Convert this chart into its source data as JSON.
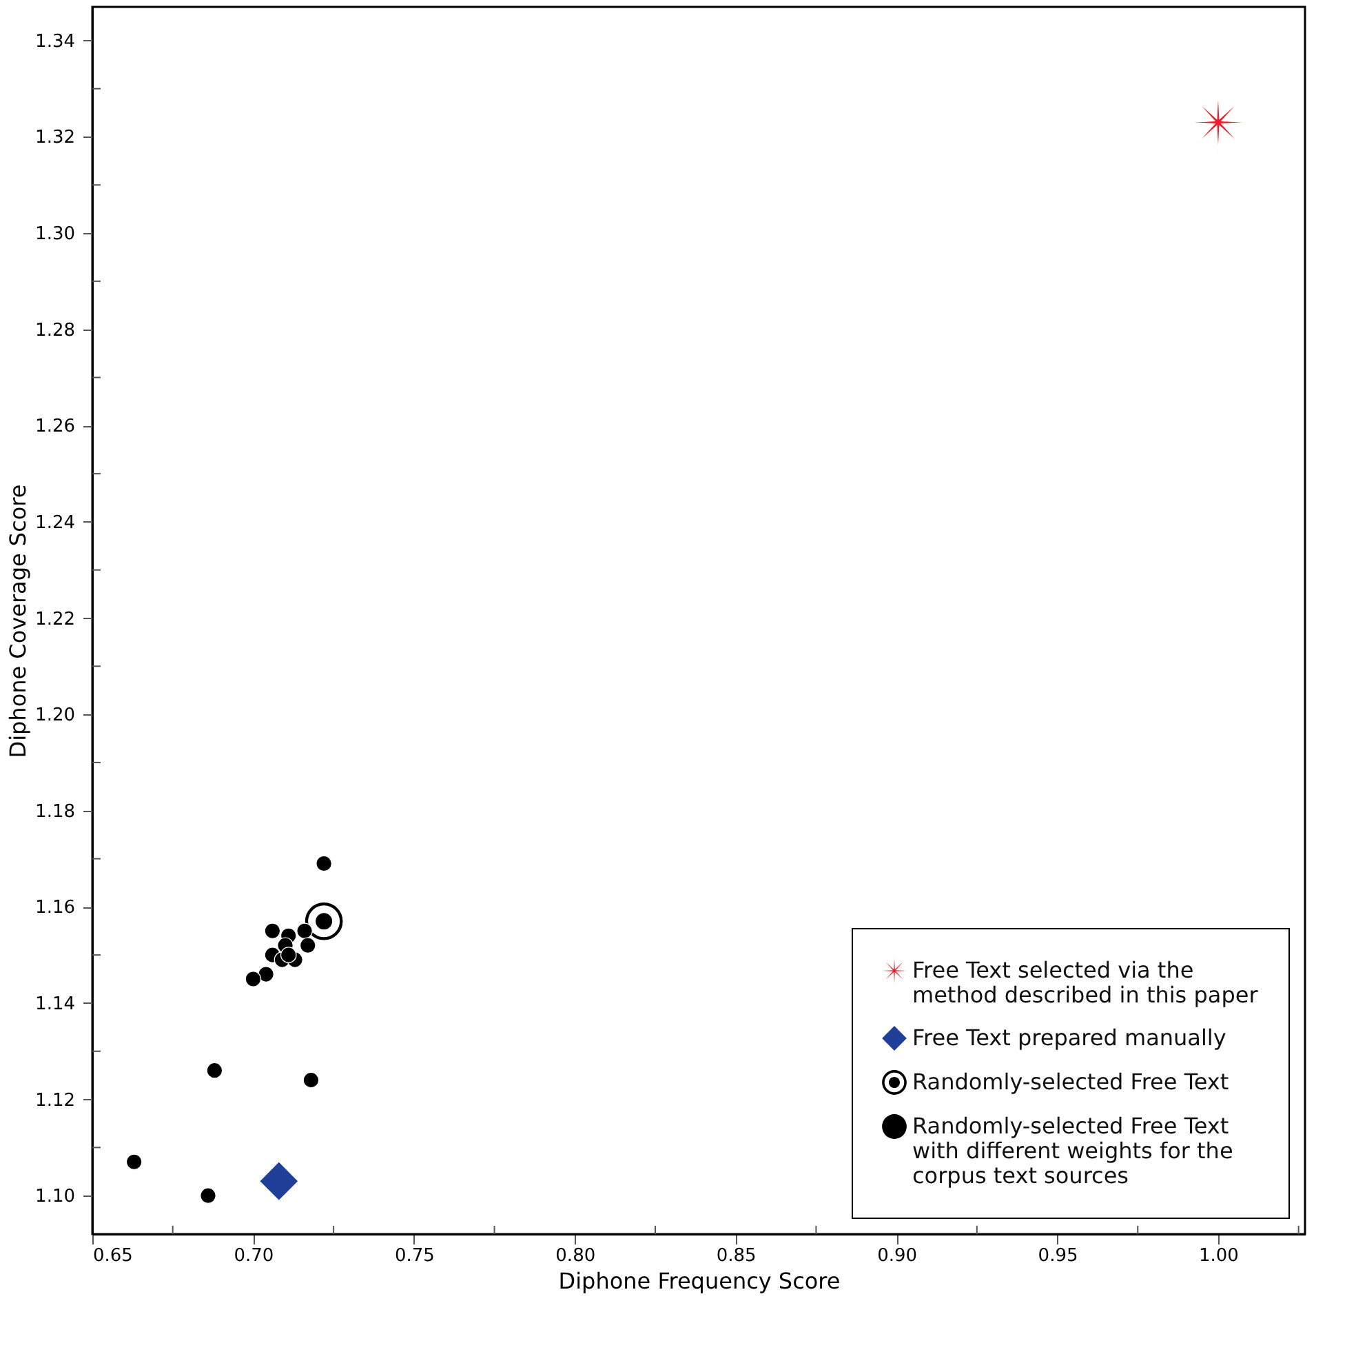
{
  "chart_data": {
    "type": "scatter",
    "xlabel": "Diphone Frequency Score",
    "ylabel": "Diphone Coverage Score",
    "xlim": [
      0.65,
      1.027
    ],
    "ylim": [
      1.092,
      1.347
    ],
    "xticks": [
      {
        "value": 0.65,
        "label": "0.65"
      },
      {
        "value": 0.675,
        "label": null
      },
      {
        "value": 0.7,
        "label": "0.70"
      },
      {
        "value": 0.725,
        "label": null
      },
      {
        "value": 0.75,
        "label": "0.75"
      },
      {
        "value": 0.775,
        "label": null
      },
      {
        "value": 0.8,
        "label": "0.80"
      },
      {
        "value": 0.825,
        "label": null
      },
      {
        "value": 0.85,
        "label": "0.85"
      },
      {
        "value": 0.875,
        "label": null
      },
      {
        "value": 0.9,
        "label": "0.90"
      },
      {
        "value": 0.925,
        "label": null
      },
      {
        "value": 0.95,
        "label": "0.95"
      },
      {
        "value": 0.975,
        "label": null
      },
      {
        "value": 1.0,
        "label": "1.00"
      },
      {
        "value": 1.025,
        "label": null
      }
    ],
    "yticks": [
      {
        "value": 1.1,
        "label": "1.10"
      },
      {
        "value": 1.11,
        "label": null
      },
      {
        "value": 1.12,
        "label": "1.12"
      },
      {
        "value": 1.13,
        "label": null
      },
      {
        "value": 1.14,
        "label": "1.14"
      },
      {
        "value": 1.15,
        "label": null
      },
      {
        "value": 1.16,
        "label": "1.16"
      },
      {
        "value": 1.17,
        "label": null
      },
      {
        "value": 1.18,
        "label": "1.18"
      },
      {
        "value": 1.19,
        "label": null
      },
      {
        "value": 1.2,
        "label": "1.20"
      },
      {
        "value": 1.21,
        "label": null
      },
      {
        "value": 1.22,
        "label": "1.22"
      },
      {
        "value": 1.23,
        "label": null
      },
      {
        "value": 1.24,
        "label": "1.24"
      },
      {
        "value": 1.25,
        "label": null
      },
      {
        "value": 1.26,
        "label": "1.26"
      },
      {
        "value": 1.27,
        "label": null
      },
      {
        "value": 1.28,
        "label": "1.28"
      },
      {
        "value": 1.29,
        "label": null
      },
      {
        "value": 1.3,
        "label": "1.30"
      },
      {
        "value": 1.31,
        "label": null
      },
      {
        "value": 1.32,
        "label": "1.32"
      },
      {
        "value": 1.33,
        "label": null
      },
      {
        "value": 1.34,
        "label": "1.34"
      }
    ],
    "grid": false,
    "legend": "bottom right",
    "series": [
      {
        "name": "Free Text selected via the method described in this paper",
        "color": "#e8202a",
        "marker": "star",
        "x": [
          1.0
        ],
        "values": [
          1.323
        ]
      },
      {
        "name": "Free Text prepared manually",
        "color": "#1f3f99",
        "marker": "diamond",
        "x": [
          0.708
        ],
        "values": [
          1.103
        ]
      },
      {
        "name": "Randomly-selected Free Text",
        "color": "#000000",
        "marker": "circle",
        "x": [
          0.722
        ],
        "values": [
          1.157
        ]
      },
      {
        "name": "Randomly-selected Free Text with different weights for the corpus text sources",
        "color": "#000000",
        "marker": "circle",
        "x": [
          0.722,
          0.706,
          0.711,
          0.716,
          0.717,
          0.71,
          0.706,
          0.709,
          0.713,
          0.711,
          0.704,
          0.7,
          0.688,
          0.718,
          0.663,
          0.686
        ],
        "values": [
          1.169,
          1.155,
          1.154,
          1.155,
          1.152,
          1.152,
          1.15,
          1.149,
          1.149,
          1.15,
          1.146,
          1.145,
          1.126,
          1.124,
          1.107,
          1.1
        ]
      }
    ]
  }
}
